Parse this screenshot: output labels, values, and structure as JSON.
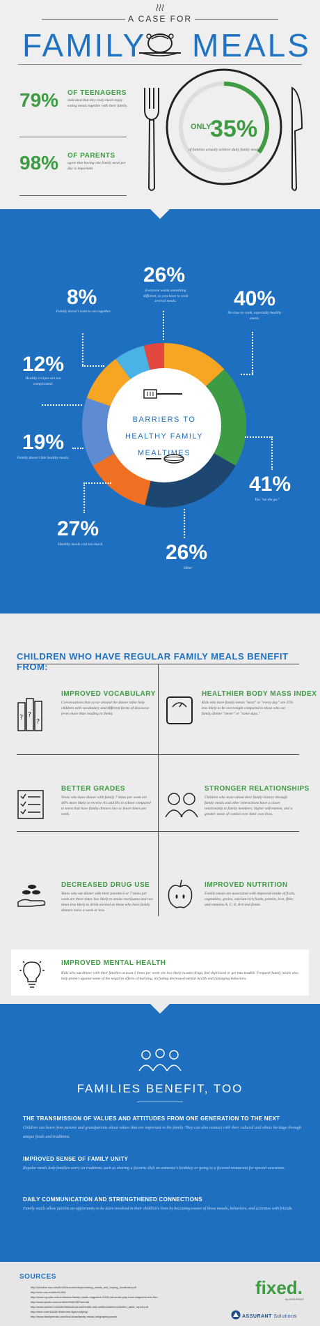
{
  "header": {
    "kicker": "A CASE FOR",
    "title_left": "FAMILY",
    "title_right": "MEALS",
    "stats": [
      {
        "value": "79%",
        "label": "OF TEENAGERS",
        "desc": "indicated that they truly much enjoy eating meals together with their family."
      },
      {
        "value": "98%",
        "label": "OF PARENTS",
        "desc": "agree that having one family meal per day is important."
      }
    ],
    "only": {
      "prefix": "ONLY",
      "value": "35%",
      "desc": "of families actually achieve daily family meals.",
      "fraction": 0.35
    }
  },
  "barriers": {
    "center_text": [
      "BARRIERS TO",
      "HEALTHY FAMILY",
      "MEALTIMES"
    ],
    "items": [
      {
        "value": "26%",
        "desc": "Everyone wants something different, so you have to cook several meals."
      },
      {
        "value": "40%",
        "desc": "No time to cook, especially healthy meals."
      },
      {
        "value": "41%",
        "desc": "Too \"on the go.\""
      },
      {
        "value": "26%",
        "desc": "Other"
      },
      {
        "value": "27%",
        "desc": "Healthy meals cost too much."
      },
      {
        "value": "19%",
        "desc": "Family doesn't like healthy meals."
      },
      {
        "value": "12%",
        "desc": "Healthy recipes are too complicated."
      },
      {
        "value": "8%",
        "desc": "Family doesn't want to eat together."
      }
    ],
    "segment_colors": [
      "#f6a623",
      "#3e9b45",
      "#1d4670",
      "#f07023",
      "#5e8bd2",
      "#f6a623",
      "#4ab3e6",
      "#e2483d"
    ],
    "segment_shares": [
      0.26,
      0.4,
      0.41,
      0.26,
      0.27,
      0.19,
      0.12,
      0.08
    ]
  },
  "benefits": {
    "heading": "CHILDREN WHO HAVE REGULAR FAMILY MEALS BENEFIT FROM:",
    "items": [
      {
        "title": "IMPROVED VOCABULARY",
        "desc": "Conversations that occur around the dinner table help children with vocabulary and different forms of discourse (even more than reading to them)."
      },
      {
        "title": "HEALTHIER BODY MASS INDEX",
        "desc": "Kids who have family meals \"most\" or \"every day\" are 35% less likely to be overweight compared to those who eat family dinner \"never\" or \"some days.\""
      },
      {
        "title": "BETTER GRADES",
        "desc": "Teens who have dinner with family 7 times per week are 40% more likely to receive A's and B's in school compared to teens that have family dinners two or fewer times per week."
      },
      {
        "title": "STRONGER RELATIONSHIPS",
        "desc": "Children who learn about their family history through family meals and other interactions have a closer relationship to family members, higher self-esteem, and a greater sense of control over their own lives."
      },
      {
        "title": "DECREASED DRUG USE",
        "desc": "Teens who eat dinner with their parents 6 or 7 times per week are three times less likely to smoke marijuana and two times less likely to drink alcohol as those who have family dinners twice a week or less."
      },
      {
        "title": "IMPROVED NUTRITION",
        "desc": "Family meals are associated with improved intake of fruits, vegetables, grains, calcium-rich foods, protein, iron, fiber, and vitamins A, C, E, B-6 and folate."
      },
      {
        "title": "IMPROVED MENTAL HEALTH",
        "desc": "Kids who eat dinner with their families at least 5 times per week are less likely to take drugs, feel depressed or get into trouble. Frequent family meals also help protect against some of the negative effects of bullying, including decreased mental health and damaging behaviors."
      }
    ]
  },
  "families": {
    "title": "FAMILIES BENEFIT, TOO",
    "items": [
      {
        "heading": "THE TRANSMISSION OF VALUES AND ATTITUDES FROM ONE GENERATION TO THE NEXT",
        "desc": "Children can learn from parents and grandparents about values that are important to the family. They can also connect with their cultural and ethnic heritage through unique foods and traditions."
      },
      {
        "heading": "IMPROVED SENSE OF FAMILY UNITY",
        "desc": "Regular meals help families carry on traditions such as sharing a favorite dish on someone's birthday or going to a favored restaurant for special occasions."
      },
      {
        "heading": "DAILY COMMUNICATION AND STRENGTHENED CONNECTIONS",
        "desc": "Family meals allow parents an opportunity to be more involved in their children's lives by becoming aware of those moods, behaviors, and activities with friends."
      }
    ]
  },
  "sources": {
    "heading": "SOURCES",
    "list": [
      "http://ohioline.osu.edu/flm02/documents/promoting_meals_and_buying_foodsheet.pdf",
      "http://ohio.osu.edu/fs/45-061",
      "http://www.cg.ndsu.edu/extension/family-meals-magazine-2009-eat-smart-play-hard-magazine-text.htm",
      "http://www.ipsdiv.com/content/2016/08/Parental",
      "http://www.webmd.com/diet/default-source/health-and-nutrition/webmd-kitchen_table_report.pdf",
      "http://time.com/3023819/dinners-fight-bullying/",
      "http://www.familymeals.com/find-ideas/family-meals-infographicpanels"
    ]
  },
  "logo": {
    "brand": "fixed.",
    "by": "by ASSURANT",
    "company": "ASSURANT",
    "company_suffix": "Solutions"
  }
}
